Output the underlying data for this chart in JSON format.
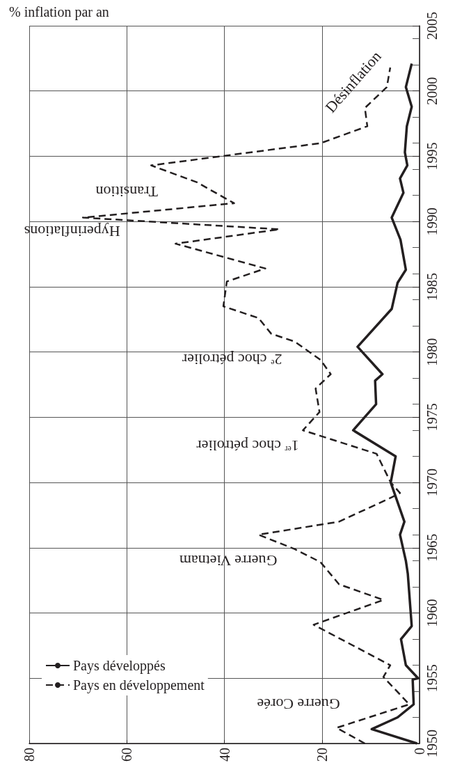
{
  "chart_data": {
    "type": "line",
    "orientation": "horizontal",
    "xlabel": "% inflation par an",
    "xlim": [
      80,
      0
    ],
    "xticks": [
      80,
      60,
      40,
      20,
      0
    ],
    "ylim": [
      1950,
      2005
    ],
    "yticks": [
      1950,
      1955,
      1960,
      1965,
      1970,
      1975,
      1980,
      1985,
      1990,
      1995,
      2000,
      2005
    ],
    "grid": true,
    "legend": "left",
    "marker": "none",
    "series": [
      {
        "name": "Pays développés",
        "color": "#231f20",
        "line_style": "solid",
        "x": [
          1950,
          1951.1,
          1952,
          1953,
          1954.9,
          1955,
          1956,
          1958,
          1959,
          1963,
          1964,
          1966,
          1967,
          1970,
          1972,
          1974,
          1976,
          1977.8,
          1978.3,
          1980.4,
          1983.3,
          1985.3,
          1986.3,
          1988.6,
          1990.3,
          1992.2,
          1993.3,
          1994.3,
          1995.3,
          1997.3,
          1998.8,
          2000.3,
          2002.1
        ],
        "values": [
          0.5,
          9.8,
          4.5,
          1.2,
          1.4,
          0.3,
          2.8,
          3.8,
          1.6,
          2.4,
          2.8,
          4.0,
          3.1,
          5.9,
          4.9,
          13.6,
          8.9,
          9.1,
          7.6,
          12.7,
          5.7,
          4.5,
          2.8,
          3.9,
          5.7,
          3.3,
          4.0,
          2.5,
          3.0,
          2.6,
          1.6,
          2.8,
          1.6
        ]
      },
      {
        "name": "Pays en développement",
        "color": "#231f20",
        "line_style": "dashed",
        "x": [
          1950,
          1951.2,
          1953,
          1955.1,
          1956,
          1959.1,
          1961,
          1962.2,
          1963.9,
          1964.9,
          1966,
          1967,
          1968.9,
          1969.2,
          1970,
          1972.2,
          1974,
          1975.4,
          1977.2,
          1978.3,
          1979.4,
          1980.8,
          1981.4,
          1982.6,
          1983.5,
          1985.4,
          1986.4,
          1988.3,
          1989.4,
          1990.3,
          1991.4,
          1993,
          1994.3,
          1996,
          1997.3,
          1998.7,
          2000.3,
          2001.8
        ],
        "values": [
          11.2,
          17,
          2.1,
          7.4,
          6,
          21.7,
          7.4,
          16.5,
          20.3,
          25.6,
          33,
          16.5,
          5.5,
          4,
          5.9,
          8.8,
          23.9,
          20.5,
          21.3,
          18.2,
          20.3,
          25.6,
          30.4,
          33,
          40.2,
          39.5,
          31.6,
          50,
          28.7,
          69,
          38,
          45.6,
          55,
          20.3,
          10.7,
          11.2,
          6.7,
          6
        ]
      }
    ],
    "annotations": [
      "Guerre Corée",
      "Guerre Vietnam",
      "1$^{er}$ choc pétrolier",
      "2$^{e}$ choc pétrolier",
      "Hyperinflations",
      "Transition",
      "Désinflation"
    ]
  }
}
